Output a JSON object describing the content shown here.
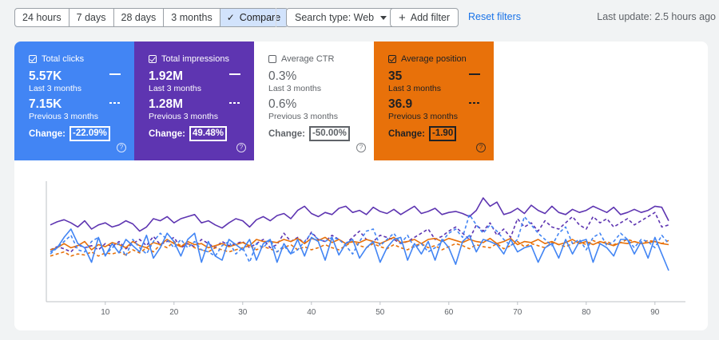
{
  "toolbar": {
    "date_ranges": [
      "24 hours",
      "7 days",
      "28 days",
      "3 months"
    ],
    "compare_label": "Compare",
    "compare_check_icon": "check-icon",
    "search_type_label": "Search type: Web",
    "add_filter_label": "Add filter",
    "reset_filters_label": "Reset filters",
    "last_update": "Last update: 2.5 hours ago"
  },
  "metrics": [
    {
      "label": "Total clicks",
      "checked": true,
      "current": "5.57K",
      "current_period": "Last 3 months",
      "previous": "7.15K",
      "previous_period": "Previous 3 months",
      "change_label": "Change:",
      "change": "-22.09%",
      "color": "#4285f4"
    },
    {
      "label": "Total impressions",
      "checked": true,
      "current": "1.92M",
      "current_period": "Last 3 months",
      "previous": "1.28M",
      "previous_period": "Previous 3 months",
      "change_label": "Change:",
      "change": "49.48%",
      "color": "#5e35b1"
    },
    {
      "label": "Average CTR",
      "checked": false,
      "current": "0.3%",
      "current_period": "Last 3 months",
      "previous": "0.6%",
      "previous_period": "Previous 3 months",
      "change_label": "Change:",
      "change": "-50.00%",
      "color": "#ffffff"
    },
    {
      "label": "Average position",
      "checked": true,
      "current": "35",
      "current_period": "Last 3 months",
      "previous": "36.9",
      "previous_period": "Previous 3 months",
      "change_label": "Change:",
      "change": "-1.90",
      "color": "#e8710a"
    }
  ],
  "help_icon": "help-circle-icon",
  "chart_data": {
    "type": "line",
    "x_ticks": [
      "10",
      "20",
      "30",
      "40",
      "50",
      "60",
      "70",
      "80",
      "90"
    ],
    "x": [
      2,
      3,
      4,
      5,
      6,
      7,
      8,
      9,
      10,
      11,
      12,
      13,
      14,
      15,
      16,
      17,
      18,
      19,
      20,
      21,
      22,
      23,
      24,
      25,
      26,
      27,
      28,
      29,
      30,
      31,
      32,
      33,
      34,
      35,
      36,
      37,
      38,
      39,
      40,
      41,
      42,
      43,
      44,
      45,
      46,
      47,
      48,
      49,
      50,
      51,
      52,
      53,
      54,
      55,
      56,
      57,
      58,
      59,
      60,
      61,
      62,
      63,
      64,
      65,
      66,
      67,
      68,
      69,
      70,
      71,
      72,
      73,
      74,
      75,
      76,
      77,
      78,
      79,
      80,
      81,
      82,
      83,
      84,
      85,
      86,
      87,
      88,
      89,
      90,
      91,
      92
    ],
    "series": [
      {
        "color": "#5e35b1",
        "style": "solid",
        "y": [
          0.74,
          0.77,
          0.79,
          0.76,
          0.72,
          0.78,
          0.7,
          0.74,
          0.76,
          0.72,
          0.74,
          0.78,
          0.75,
          0.68,
          0.72,
          0.8,
          0.78,
          0.82,
          0.76,
          0.8,
          0.82,
          0.84,
          0.76,
          0.78,
          0.74,
          0.71,
          0.76,
          0.8,
          0.78,
          0.72,
          0.79,
          0.82,
          0.78,
          0.83,
          0.85,
          0.8,
          0.88,
          0.92,
          0.85,
          0.82,
          0.86,
          0.84,
          0.9,
          0.92,
          0.86,
          0.88,
          0.84,
          0.91,
          0.87,
          0.85,
          0.89,
          0.84,
          0.88,
          0.92,
          0.85,
          0.87,
          0.9,
          0.84,
          0.86,
          0.87,
          0.85,
          0.82,
          0.88,
          1.0,
          0.92,
          0.96,
          0.84,
          0.86,
          0.9,
          0.85,
          0.93,
          0.88,
          0.85,
          0.92,
          0.86,
          0.84,
          0.89,
          0.86,
          0.88,
          0.92,
          0.89,
          0.86,
          0.91,
          0.84,
          0.86,
          0.89,
          0.86,
          0.88,
          0.92,
          0.91,
          0.78
        ]
      },
      {
        "color": "#5e35b1",
        "style": "dashed",
        "y": [
          0.5,
          0.53,
          0.51,
          0.48,
          0.55,
          0.52,
          0.54,
          0.5,
          0.56,
          0.53,
          0.58,
          0.51,
          0.56,
          0.6,
          0.54,
          0.63,
          0.55,
          0.58,
          0.62,
          0.52,
          0.56,
          0.53,
          0.6,
          0.56,
          0.52,
          0.58,
          0.54,
          0.56,
          0.58,
          0.52,
          0.56,
          0.6,
          0.52,
          0.55,
          0.66,
          0.58,
          0.62,
          0.56,
          0.67,
          0.6,
          0.58,
          0.64,
          0.6,
          0.56,
          0.62,
          0.68,
          0.6,
          0.58,
          0.64,
          0.62,
          0.6,
          0.56,
          0.58,
          0.62,
          0.66,
          0.7,
          0.6,
          0.63,
          0.68,
          0.72,
          0.66,
          0.6,
          0.74,
          0.68,
          0.76,
          0.64,
          0.7,
          0.62,
          0.8,
          0.72,
          0.76,
          0.68,
          0.78,
          0.72,
          0.7,
          0.76,
          0.82,
          0.74,
          0.7,
          0.82,
          0.76,
          0.8,
          0.72,
          0.76,
          0.8,
          0.74,
          0.78,
          0.82,
          0.86,
          0.72,
          0.74
        ]
      },
      {
        "color": "#e8710a",
        "style": "solid",
        "y": [
          0.5,
          0.52,
          0.56,
          0.52,
          0.54,
          0.58,
          0.5,
          0.55,
          0.53,
          0.57,
          0.55,
          0.52,
          0.58,
          0.54,
          0.52,
          0.57,
          0.55,
          0.6,
          0.56,
          0.53,
          0.58,
          0.55,
          0.56,
          0.52,
          0.54,
          0.56,
          0.53,
          0.55,
          0.57,
          0.54,
          0.6,
          0.58,
          0.58,
          0.57,
          0.6,
          0.58,
          0.61,
          0.56,
          0.61,
          0.59,
          0.62,
          0.57,
          0.6,
          0.56,
          0.58,
          0.57,
          0.6,
          0.58,
          0.56,
          0.59,
          0.62,
          0.57,
          0.58,
          0.6,
          0.56,
          0.6,
          0.61,
          0.58,
          0.61,
          0.59,
          0.57,
          0.6,
          0.58,
          0.57,
          0.61,
          0.56,
          0.58,
          0.61,
          0.55,
          0.58,
          0.57,
          0.6,
          0.56,
          0.58,
          0.55,
          0.57,
          0.6,
          0.56,
          0.58,
          0.55,
          0.58,
          0.56,
          0.54,
          0.57,
          0.56,
          0.58,
          0.56,
          0.57,
          0.58,
          0.56,
          0.55
        ]
      },
      {
        "color": "#e8710a",
        "style": "dashed",
        "y": [
          0.44,
          0.46,
          0.48,
          0.44,
          0.46,
          0.45,
          0.48,
          0.44,
          0.47,
          0.46,
          0.48,
          0.45,
          0.5,
          0.47,
          0.52,
          0.48,
          0.55,
          0.52,
          0.58,
          0.54,
          0.56,
          0.52,
          0.5,
          0.48,
          0.52,
          0.5,
          0.48,
          0.5,
          0.52,
          0.54,
          0.5,
          0.53,
          0.51,
          0.48,
          0.52,
          0.55,
          0.5,
          0.53,
          0.5,
          0.52,
          0.55,
          0.52,
          0.5,
          0.54,
          0.58,
          0.54,
          0.52,
          0.56,
          0.53,
          0.51,
          0.55,
          0.52,
          0.5,
          0.54,
          0.56,
          0.52,
          0.54,
          0.5,
          0.53,
          0.56,
          0.54,
          0.51,
          0.55,
          0.53,
          0.52,
          0.56,
          0.51,
          0.54,
          0.58,
          0.53,
          0.56,
          0.54,
          0.52,
          0.57,
          0.55,
          0.53,
          0.56,
          0.58,
          0.55,
          0.59,
          0.56,
          0.58,
          0.55,
          0.57,
          0.6,
          0.58,
          0.56,
          0.59,
          0.58,
          0.56,
          0.59
        ]
      },
      {
        "color": "#4285f4",
        "style": "solid",
        "y": [
          0.48,
          0.52,
          0.62,
          0.7,
          0.56,
          0.52,
          0.38,
          0.62,
          0.44,
          0.56,
          0.47,
          0.6,
          0.54,
          0.48,
          0.64,
          0.42,
          0.52,
          0.66,
          0.58,
          0.44,
          0.6,
          0.66,
          0.38,
          0.58,
          0.44,
          0.4,
          0.6,
          0.55,
          0.5,
          0.6,
          0.4,
          0.56,
          0.6,
          0.38,
          0.56,
          0.46,
          0.6,
          0.44,
          0.62,
          0.58,
          0.4,
          0.62,
          0.45,
          0.56,
          0.6,
          0.42,
          0.52,
          0.58,
          0.38,
          0.52,
          0.6,
          0.62,
          0.4,
          0.56,
          0.46,
          0.58,
          0.4,
          0.6,
          0.52,
          0.36,
          0.58,
          0.64,
          0.48,
          0.6,
          0.58,
          0.55,
          0.46,
          0.6,
          0.48,
          0.52,
          0.54,
          0.38,
          0.52,
          0.56,
          0.42,
          0.6,
          0.46,
          0.58,
          0.6,
          0.38,
          0.56,
          0.52,
          0.44,
          0.6,
          0.6,
          0.46,
          0.58,
          0.42,
          0.62,
          0.46,
          0.3
        ]
      },
      {
        "color": "#4285f4",
        "style": "dashed",
        "y": [
          0.46,
          0.52,
          0.58,
          0.64,
          0.5,
          0.48,
          0.58,
          0.62,
          0.45,
          0.52,
          0.56,
          0.44,
          0.6,
          0.52,
          0.46,
          0.58,
          0.66,
          0.6,
          0.52,
          0.6,
          0.52,
          0.58,
          0.5,
          0.48,
          0.44,
          0.54,
          0.58,
          0.46,
          0.52,
          0.38,
          0.56,
          0.52,
          0.6,
          0.48,
          0.54,
          0.46,
          0.5,
          0.58,
          0.66,
          0.6,
          0.58,
          0.62,
          0.6,
          0.54,
          0.46,
          0.58,
          0.68,
          0.7,
          0.54,
          0.6,
          0.66,
          0.56,
          0.64,
          0.52,
          0.56,
          0.48,
          0.52,
          0.58,
          0.66,
          0.7,
          0.62,
          0.84,
          0.74,
          0.66,
          0.74,
          0.68,
          0.6,
          0.54,
          0.6,
          0.82,
          0.74,
          0.66,
          0.6,
          0.54,
          0.66,
          0.72,
          0.56,
          0.6,
          0.5,
          0.62,
          0.66,
          0.54,
          0.58,
          0.66,
          0.6,
          0.52,
          0.6,
          0.58,
          0.52,
          0.64,
          0.56
        ]
      }
    ]
  }
}
